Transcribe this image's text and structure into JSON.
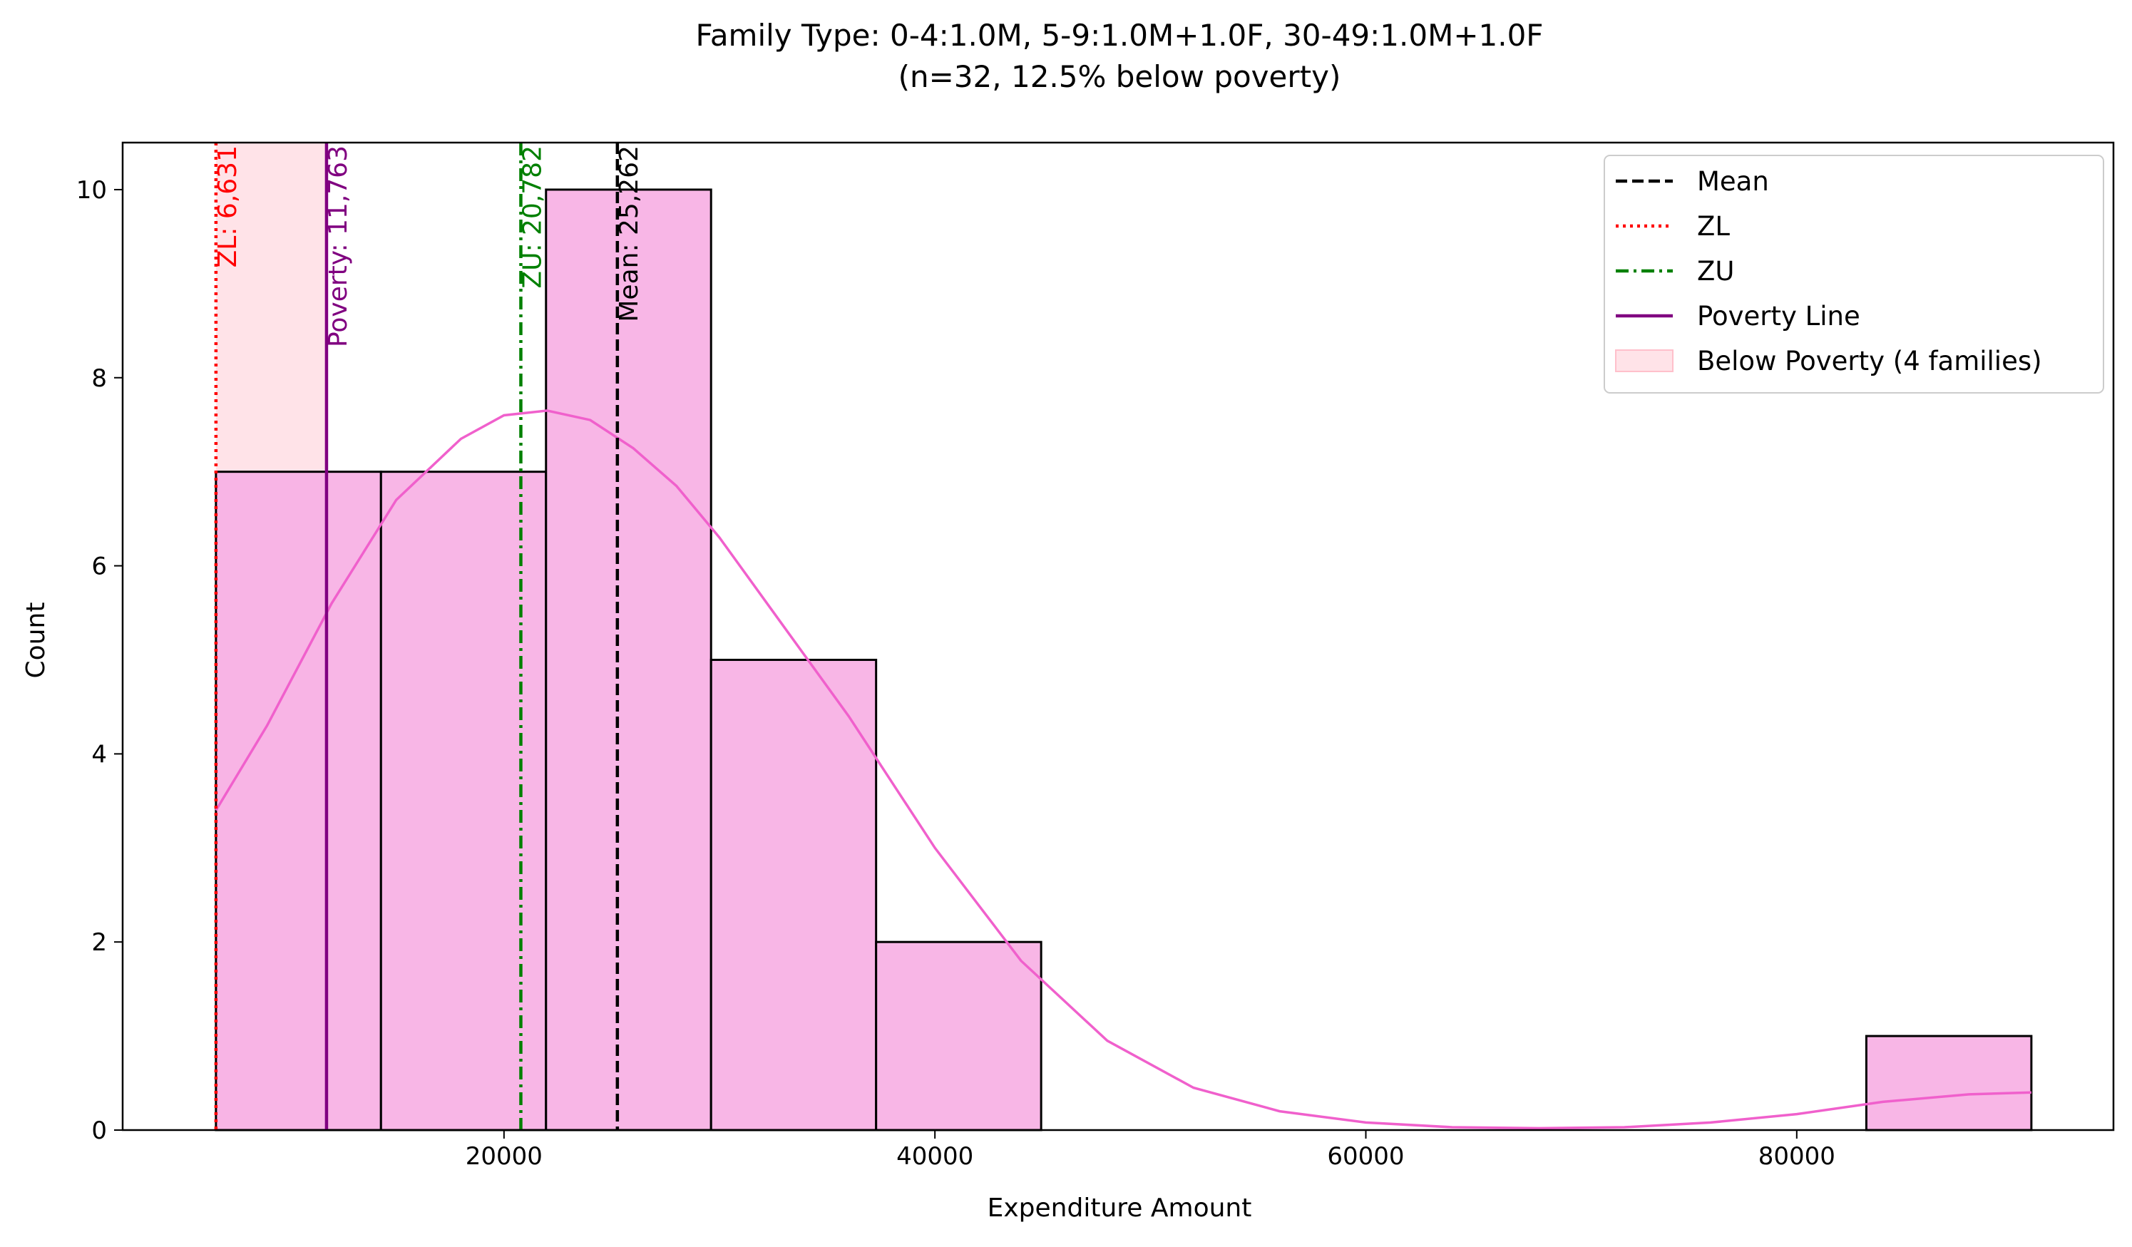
{
  "chart_data": {
    "type": "histogram",
    "title": "Family Type: 0-4:1.0M, 5-9:1.0M+1.0F, 30-49:1.0M+1.0F",
    "subtitle": "(n=32, 12.5% below poverty)",
    "xlabel": "Expenditure Amount",
    "ylabel": "Count",
    "xlim": [
      2300,
      94700
    ],
    "ylim": [
      0,
      10.5
    ],
    "x_ticks": [
      20000,
      40000,
      60000,
      80000
    ],
    "x_tick_labels": [
      "20000",
      "40000",
      "60000",
      "80000"
    ],
    "y_ticks": [
      0,
      2,
      4,
      6,
      8,
      10
    ],
    "y_tick_labels": [
      "0",
      "2",
      "4",
      "6",
      "8",
      "10"
    ],
    "grid": false,
    "legend_position": "top-right",
    "bins": [
      {
        "start": 6631,
        "end": 14290,
        "count": 7
      },
      {
        "start": 14290,
        "end": 21950,
        "count": 7
      },
      {
        "start": 21950,
        "end": 29610,
        "count": 10
      },
      {
        "start": 29610,
        "end": 37270,
        "count": 5
      },
      {
        "start": 37270,
        "end": 44930,
        "count": 2
      },
      {
        "start": 44930,
        "end": 52590,
        "count": 0
      },
      {
        "start": 52590,
        "end": 60250,
        "count": 0
      },
      {
        "start": 60250,
        "end": 67910,
        "count": 0
      },
      {
        "start": 67910,
        "end": 75570,
        "count": 0
      },
      {
        "start": 75570,
        "end": 83230,
        "count": 0
      },
      {
        "start": 83230,
        "end": 90890,
        "count": 1
      }
    ],
    "kde": {
      "x": [
        6631,
        9000,
        12000,
        15000,
        18000,
        20000,
        22000,
        24000,
        26000,
        28000,
        30000,
        33000,
        36000,
        40000,
        44000,
        48000,
        52000,
        56000,
        60000,
        64000,
        68000,
        72000,
        76000,
        80000,
        84000,
        88000,
        90890
      ],
      "y": [
        3.4,
        4.3,
        5.6,
        6.7,
        7.35,
        7.6,
        7.65,
        7.55,
        7.25,
        6.85,
        6.3,
        5.35,
        4.4,
        3.0,
        1.8,
        0.95,
        0.45,
        0.2,
        0.08,
        0.03,
        0.02,
        0.03,
        0.08,
        0.17,
        0.3,
        0.38,
        0.4
      ]
    },
    "reference_lines": [
      {
        "name": "Mean",
        "value": 25262,
        "label": "Mean: 25,262",
        "style": "dashed",
        "color": "#000000"
      },
      {
        "name": "ZL",
        "value": 6631,
        "label": "ZL: 6,631",
        "style": "dotted",
        "color": "#ff0000"
      },
      {
        "name": "ZU",
        "value": 20782,
        "label": "ZU: 20,782",
        "style": "dashdot",
        "color": "#008000"
      },
      {
        "name": "Poverty Line",
        "value": 11763,
        "label": "Poverty: 11,763",
        "style": "solid",
        "color": "#800080"
      }
    ],
    "shaded_region": {
      "start": 6631,
      "end": 11763,
      "label": "Below Poverty (4 families)",
      "color": "#ffc0cb"
    },
    "legend": [
      {
        "label": "Mean",
        "style": "dashed",
        "color": "#000000"
      },
      {
        "label": "ZL",
        "style": "dotted",
        "color": "#ff0000"
      },
      {
        "label": "ZU",
        "style": "dashdot",
        "color": "#008000"
      },
      {
        "label": "Poverty Line",
        "style": "solid",
        "color": "#800080"
      },
      {
        "label": "Below Poverty (4 families)",
        "style": "patch",
        "color": "#ffc0cb"
      }
    ],
    "colors": {
      "bar_fill": "#f7b0e4",
      "bar_edge": "#000000",
      "kde_line": "#f060cc",
      "shade": "#ffc0cb"
    }
  }
}
